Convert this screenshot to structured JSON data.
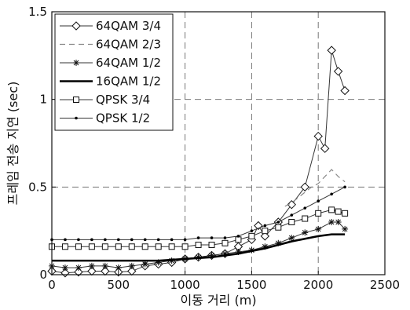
{
  "chart_data": {
    "type": "line",
    "xlabel": "이동 거리 (m)",
    "ylabel": "프레임 전송 지연 (sec)",
    "xlim": [
      0,
      2500
    ],
    "ylim": [
      0,
      1.5
    ],
    "x_ticks": [
      "0",
      "500",
      "1000",
      "1500",
      "2000",
      "2500"
    ],
    "y_ticks": [
      "0",
      "0.5",
      "1",
      "1.5"
    ],
    "grid": "dashed at 1000, 1500, 2000 and 0.5, 1",
    "legend_position": "top-left",
    "series": [
      {
        "name": "64QAM 3/4",
        "marker": "diamond",
        "style": "solid-thin",
        "x": [
          0,
          100,
          200,
          300,
          400,
          500,
          600,
          700,
          800,
          900,
          1000,
          1100,
          1200,
          1300,
          1400,
          1500,
          1550,
          1600,
          1700,
          1800,
          1900,
          2000,
          2050,
          2100,
          2150,
          2200
        ],
        "y": [
          0.02,
          0.01,
          0.015,
          0.02,
          0.02,
          0.015,
          0.02,
          0.05,
          0.06,
          0.07,
          0.09,
          0.1,
          0.11,
          0.12,
          0.16,
          0.2,
          0.28,
          0.22,
          0.3,
          0.4,
          0.5,
          0.79,
          0.72,
          1.28,
          1.16,
          1.05
        ]
      },
      {
        "name": "64QAM 2/3",
        "marker": "none",
        "style": "dashed",
        "x": [
          1750,
          1800,
          1850,
          1900,
          1950,
          2000,
          2050,
          2100,
          2150,
          2200
        ],
        "y": [
          0.39,
          0.41,
          0.44,
          0.47,
          0.5,
          0.52,
          0.56,
          0.6,
          0.56,
          0.53
        ]
      },
      {
        "name": "64QAM 1/2",
        "marker": "star",
        "style": "solid-thin",
        "x": [
          0,
          100,
          200,
          300,
          400,
          500,
          600,
          700,
          800,
          900,
          1000,
          1100,
          1200,
          1300,
          1400,
          1500,
          1600,
          1700,
          1800,
          1900,
          2000,
          2100,
          2150,
          2200
        ],
        "y": [
          0.05,
          0.04,
          0.04,
          0.05,
          0.05,
          0.04,
          0.05,
          0.06,
          0.07,
          0.08,
          0.09,
          0.1,
          0.11,
          0.12,
          0.13,
          0.14,
          0.16,
          0.18,
          0.21,
          0.24,
          0.26,
          0.3,
          0.3,
          0.26
        ]
      },
      {
        "name": "16QAM 1/2",
        "marker": "none",
        "style": "solid-thick",
        "x": [
          0,
          200,
          400,
          600,
          800,
          1000,
          1200,
          1400,
          1600,
          1800,
          2000,
          2100,
          2200
        ],
        "y": [
          0.08,
          0.08,
          0.08,
          0.08,
          0.08,
          0.09,
          0.1,
          0.12,
          0.15,
          0.19,
          0.22,
          0.23,
          0.23
        ]
      },
      {
        "name": "QPSK 3/4",
        "marker": "square",
        "style": "solid-thin",
        "x": [
          0,
          100,
          200,
          300,
          400,
          500,
          600,
          700,
          800,
          900,
          1000,
          1100,
          1200,
          1300,
          1400,
          1500,
          1600,
          1700,
          1800,
          1900,
          2000,
          2100,
          2150,
          2200
        ],
        "y": [
          0.16,
          0.16,
          0.16,
          0.16,
          0.16,
          0.16,
          0.16,
          0.16,
          0.16,
          0.16,
          0.16,
          0.17,
          0.17,
          0.18,
          0.2,
          0.22,
          0.25,
          0.27,
          0.3,
          0.32,
          0.35,
          0.37,
          0.36,
          0.35
        ]
      },
      {
        "name": "QPSK 1/2",
        "marker": "dot",
        "style": "solid-thin",
        "x": [
          0,
          100,
          200,
          300,
          400,
          500,
          600,
          700,
          800,
          900,
          1000,
          1100,
          1200,
          1300,
          1400,
          1500,
          1600,
          1700,
          1800,
          1900,
          2000,
          2100,
          2200
        ],
        "y": [
          0.2,
          0.2,
          0.2,
          0.2,
          0.2,
          0.2,
          0.2,
          0.2,
          0.2,
          0.2,
          0.2,
          0.21,
          0.21,
          0.21,
          0.22,
          0.25,
          0.28,
          0.3,
          0.34,
          0.38,
          0.42,
          0.46,
          0.5
        ]
      }
    ]
  }
}
